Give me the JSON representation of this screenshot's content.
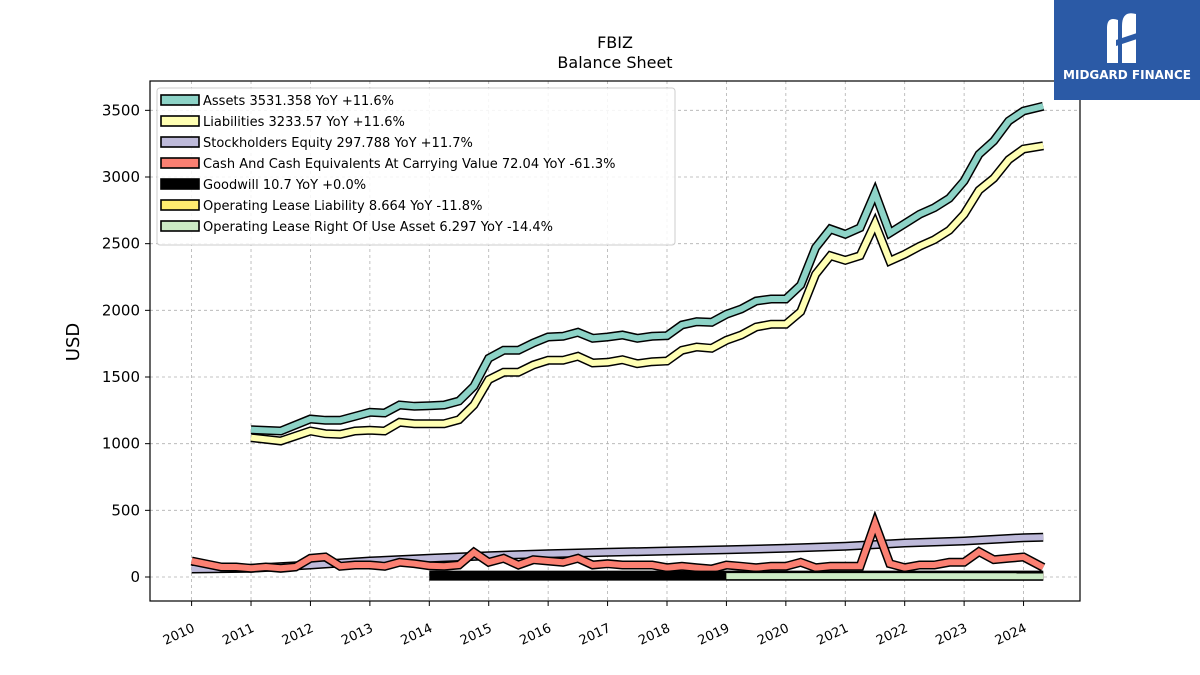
{
  "brand": {
    "name": "MIDGARD FINANCE",
    "bg_color": "#2b5aa6"
  },
  "chart_data": {
    "type": "line",
    "title": "FBIZ",
    "subtitle": "Balance  Sheet",
    "xlabel": "",
    "ylabel": "USD",
    "xlim": [
      2009.3,
      2024.95
    ],
    "ylim": [
      -180,
      3720
    ],
    "yticks": [
      0,
      500,
      1000,
      1500,
      2000,
      2500,
      3000,
      3500
    ],
    "xticks": [
      "2010",
      "2011",
      "2012",
      "2013",
      "2014",
      "2015",
      "2016",
      "2017",
      "2018",
      "2019",
      "2020",
      "2021",
      "2022",
      "2023",
      "2024"
    ],
    "grid": true,
    "legend_position": "top-left",
    "series": [
      {
        "name": "Assets  3531.358 YoY +11.6%",
        "color": "#8dd3c7",
        "x": [
          2011.0,
          2011.5,
          2012.0,
          2012.25,
          2012.5,
          2012.75,
          2013.0,
          2013.25,
          2013.5,
          2013.75,
          2014.0,
          2014.25,
          2014.5,
          2014.75,
          2015.0,
          2015.25,
          2015.5,
          2015.75,
          2016.0,
          2016.25,
          2016.5,
          2016.75,
          2017.0,
          2017.25,
          2017.5,
          2017.75,
          2018.0,
          2018.25,
          2018.5,
          2018.75,
          2019.0,
          2019.25,
          2019.5,
          2019.75,
          2020.0,
          2020.25,
          2020.5,
          2020.75,
          2021.0,
          2021.25,
          2021.5,
          2021.75,
          2022.0,
          2022.25,
          2022.5,
          2022.75,
          2023.0,
          2023.25,
          2023.5,
          2023.75,
          2024.0,
          2024.33
        ],
        "y": [
          1105,
          1095,
          1185,
          1175,
          1175,
          1205,
          1235,
          1230,
          1290,
          1280,
          1285,
          1290,
          1320,
          1430,
          1640,
          1700,
          1700,
          1755,
          1800,
          1805,
          1835,
          1790,
          1800,
          1815,
          1790,
          1805,
          1810,
          1890,
          1915,
          1910,
          1970,
          2010,
          2070,
          2085,
          2085,
          2190,
          2470,
          2610,
          2570,
          2620,
          2880,
          2580,
          2650,
          2720,
          2770,
          2840,
          2970,
          3170,
          3270,
          3420,
          3495,
          3531
        ]
      },
      {
        "name": "Liabilities  3233.57 YoY +11.6%",
        "color": "#ffffb3",
        "x": [
          2011.0,
          2011.5,
          2012.0,
          2012.25,
          2012.5,
          2012.75,
          2013.0,
          2013.25,
          2013.5,
          2013.75,
          2014.0,
          2014.25,
          2014.5,
          2014.75,
          2015.0,
          2015.25,
          2015.5,
          2015.75,
          2016.0,
          2016.25,
          2016.5,
          2016.75,
          2017.0,
          2017.25,
          2017.5,
          2017.75,
          2018.0,
          2018.25,
          2018.5,
          2018.75,
          2019.0,
          2019.25,
          2019.5,
          2019.75,
          2020.0,
          2020.25,
          2020.5,
          2020.75,
          2021.0,
          2021.25,
          2021.5,
          2021.75,
          2022.0,
          2022.25,
          2022.5,
          2022.75,
          2023.0,
          2023.25,
          2023.5,
          2023.75,
          2024.0,
          2024.33
        ],
        "y": [
          1045,
          1020,
          1095,
          1075,
          1070,
          1095,
          1100,
          1095,
          1160,
          1150,
          1150,
          1150,
          1180,
          1290,
          1480,
          1535,
          1535,
          1590,
          1625,
          1625,
          1655,
          1605,
          1610,
          1630,
          1600,
          1615,
          1620,
          1700,
          1725,
          1715,
          1775,
          1815,
          1875,
          1895,
          1895,
          1990,
          2270,
          2410,
          2375,
          2410,
          2650,
          2370,
          2420,
          2480,
          2530,
          2600,
          2720,
          2900,
          2990,
          3130,
          3210,
          3234
        ]
      },
      {
        "name": "Stockholders Equity  297.788 YoY +11.7%",
        "color": "#bebada",
        "x": [
          2010.0,
          2011.0,
          2012.0,
          2013.0,
          2014.0,
          2015.0,
          2016.0,
          2017.0,
          2018.0,
          2019.0,
          2020.0,
          2021.0,
          2022.0,
          2023.0,
          2024.0,
          2024.33
        ],
        "y": [
          60,
          65,
          90,
          120,
          140,
          160,
          175,
          185,
          195,
          205,
          215,
          230,
          255,
          270,
          295,
          298
        ]
      },
      {
        "name": "Cash And Cash Equivalents At Carrying Value  72.04 YoY -61.3%",
        "color": "#fb8072",
        "x": [
          2010.0,
          2010.5,
          2010.75,
          2011.0,
          2011.25,
          2011.5,
          2011.75,
          2012.0,
          2012.25,
          2012.5,
          2012.75,
          2013.0,
          2013.25,
          2013.5,
          2013.75,
          2014.0,
          2014.25,
          2014.5,
          2014.75,
          2015.0,
          2015.25,
          2015.5,
          2015.75,
          2016.0,
          2016.25,
          2016.5,
          2016.75,
          2017.0,
          2017.25,
          2017.5,
          2017.75,
          2018.0,
          2018.25,
          2018.5,
          2018.75,
          2019.0,
          2019.25,
          2019.5,
          2019.75,
          2020.0,
          2020.25,
          2020.5,
          2020.75,
          2021.0,
          2021.25,
          2021.5,
          2021.75,
          2022.0,
          2022.25,
          2022.5,
          2022.75,
          2023.0,
          2023.25,
          2023.5,
          2023.75,
          2024.0,
          2024.33
        ],
        "y": [
          120,
          75,
          75,
          65,
          75,
          65,
          75,
          140,
          150,
          80,
          90,
          90,
          80,
          110,
          100,
          85,
          80,
          90,
          185,
          110,
          140,
          90,
          130,
          120,
          110,
          140,
          90,
          100,
          90,
          90,
          90,
          70,
          80,
          70,
          60,
          90,
          80,
          70,
          80,
          80,
          110,
          70,
          80,
          80,
          80,
          400,
          100,
          70,
          90,
          90,
          110,
          110,
          190,
          130,
          140,
          150,
          72
        ]
      },
      {
        "name": "Goodwill  10.7 YoY +0.0%",
        "color": "#000000",
        "x": [
          2014.0,
          2024.33
        ],
        "y": [
          10.7,
          10.7
        ]
      },
      {
        "name": "Operating Lease Liability  8.664 YoY -11.8%",
        "color": "#ffed6f",
        "x": [
          2019.0,
          2024.33
        ],
        "y": [
          10,
          8.664
        ]
      },
      {
        "name": "Operating Lease Right Of Use Asset  6.297 YoY -14.4%",
        "color": "#ccebc5",
        "x": [
          2019.0,
          2024.33
        ],
        "y": [
          7,
          6.297
        ]
      }
    ]
  }
}
